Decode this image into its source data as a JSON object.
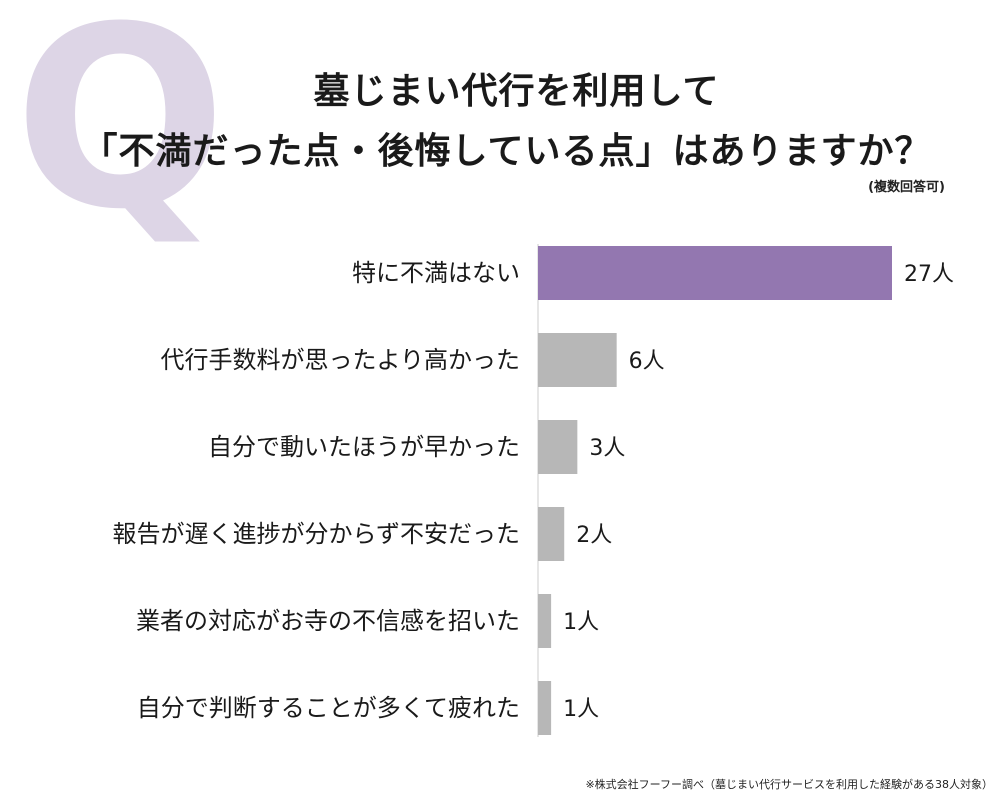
{
  "q_letter": "Q",
  "title": {
    "line1": "墓じまい代行を利用して",
    "line2": "「不満だった点・後悔している点」はありますか？"
  },
  "note": "(複数回答可)",
  "footer": "※株式会社フーフー調べ（墓じまい代行サービスを利用した経験がある38人対象）",
  "colors": {
    "highlight": "#9377b0",
    "bar": "#b7b7b7",
    "q_letter": "#ddd5e6"
  },
  "chart_data": {
    "type": "bar",
    "orientation": "horizontal",
    "categories": [
      "特に不満はない",
      "代行手数料が思ったより高かった",
      "自分で動いたほうが早かった",
      "報告が遅く進捗が分からず不安だった",
      "業者の対応がお寺の不信感を招いた",
      "自分で判断することが多くて疲れた"
    ],
    "values": [
      27,
      6,
      3,
      2,
      1,
      1
    ],
    "value_labels": [
      "27人",
      "6人",
      "3人",
      "2人",
      "1人",
      "1人"
    ],
    "unit": "人",
    "xlim": [
      0,
      27
    ],
    "highlight_index": 0,
    "grid": false
  }
}
